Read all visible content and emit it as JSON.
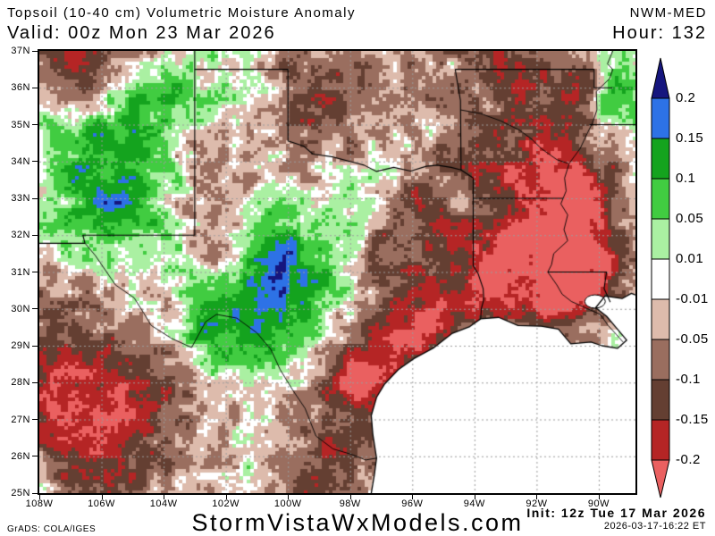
{
  "header": {
    "title": "Topsoil (10-40 cm) Volumetric Moisture Anomaly",
    "model": "NWM-MED",
    "valid": "Valid: 00z Mon 23 Mar 2026",
    "hour": "Hour: 132"
  },
  "footer": {
    "site": "StormVistaWxModels.com",
    "init": "Init: 12z Tue 17 Mar 2026",
    "generated": "2026-03-17-16:22 ET",
    "credit": "GrADS: COLA/IGES"
  },
  "axes": {
    "lat": [
      "37N",
      "36N",
      "35N",
      "34N",
      "33N",
      "32N",
      "31N",
      "30N",
      "29N",
      "28N",
      "27N",
      "26N",
      "25N"
    ],
    "lon": [
      "108W",
      "106W",
      "104W",
      "102W",
      "100W",
      "98W",
      "96W",
      "94W",
      "92W",
      "90W"
    ]
  },
  "colorbar": {
    "labels": [
      "0.2",
      "0.15",
      "0.1",
      "0.05",
      "0.01",
      "-0.01",
      "-0.05",
      "-0.1",
      "-0.15",
      "-0.2"
    ]
  },
  "map": {
    "bounds": {
      "lon_min": -108,
      "lon_max": -88.82,
      "lat_min": 25,
      "lat_max": 37
    },
    "grid": {
      "lat_step": 1,
      "lon_step": 2,
      "color": "#9c9c9c"
    },
    "levels": [
      0.2,
      0.15,
      0.1,
      0.05,
      0.01,
      -0.01,
      -0.05,
      -0.1,
      -0.15,
      -0.2
    ],
    "palette": [
      "#16167e",
      "#2d72e6",
      "#14a31e",
      "#41cc41",
      "#aaf0a2",
      "#ffffff",
      "#ddbbac",
      "#9a6e5f",
      "#643f32",
      "#b52525",
      "#ea6060"
    ],
    "base_bias": -0.012,
    "noise": {
      "scales": [
        [
          3.2,
          0.05
        ],
        [
          7.3,
          0.034
        ]
      ],
      "jitter": 0.018
    },
    "blobs": [
      [
        -105.7,
        34.6,
        1.5,
        0.1
      ],
      [
        -104.3,
        36.0,
        0.8,
        0.09
      ],
      [
        -106.7,
        33.0,
        1.1,
        0.07
      ],
      [
        -105.9,
        31.6,
        0.8,
        0.05
      ],
      [
        -103.6,
        30.6,
        1.2,
        0.04
      ],
      [
        -102.2,
        29.5,
        0.9,
        0.13
      ],
      [
        -100.4,
        31.35,
        0.9,
        0.14
      ],
      [
        -99.3,
        30.3,
        1.4,
        0.07
      ],
      [
        -100.8,
        29.6,
        0.7,
        0.07
      ],
      [
        -99.9,
        26.4,
        1.1,
        0.05
      ],
      [
        -97.9,
        33.7,
        1.0,
        0.05
      ],
      [
        -96.7,
        34.6,
        0.6,
        0.05
      ],
      [
        -96.6,
        36.6,
        0.7,
        0.05
      ],
      [
        -98.9,
        36.85,
        0.5,
        0.04
      ],
      [
        -89.6,
        35.5,
        0.7,
        0.1
      ],
      [
        -89.2,
        36.5,
        0.5,
        0.06
      ],
      [
        -94.4,
        30.7,
        0.4,
        0.05
      ],
      [
        -104.8,
        33.3,
        0.9,
        0.06
      ],
      [
        -101.0,
        36.0,
        0.7,
        0.05
      ],
      [
        -100.3,
        28.4,
        0.9,
        0.02
      ],
      [
        -106.85,
        36.7,
        1.1,
        -0.13
      ],
      [
        -106.9,
        36.9,
        0.4,
        -0.1
      ],
      [
        -104.9,
        37.0,
        0.9,
        -0.08
      ],
      [
        -102.6,
        33.6,
        0.9,
        -0.05
      ],
      [
        -102.1,
        31.5,
        0.8,
        -0.07
      ],
      [
        -99.9,
        36.4,
        0.9,
        -0.06
      ],
      [
        -98.4,
        35.2,
        1.3,
        -0.1
      ],
      [
        -96.1,
        36.1,
        0.9,
        -0.05
      ],
      [
        -93.4,
        36.9,
        0.7,
        -0.07
      ],
      [
        -92.2,
        34.6,
        1.6,
        -0.09
      ],
      [
        -90.6,
        35.8,
        0.5,
        -0.12
      ],
      [
        -90.9,
        33.2,
        1.0,
        -0.14
      ],
      [
        -91.3,
        31.0,
        1.1,
        -0.15
      ],
      [
        -89.9,
        31.0,
        0.8,
        -0.13
      ],
      [
        -90.4,
        32.7,
        0.6,
        -0.1
      ],
      [
        -94.7,
        30.7,
        1.4,
        -0.14
      ],
      [
        -96.4,
        29.1,
        1.0,
        -0.15
      ],
      [
        -97.7,
        28.1,
        0.5,
        -0.13
      ],
      [
        -98.2,
        27.2,
        1.3,
        -0.12
      ],
      [
        -99.3,
        25.5,
        1.0,
        -0.1
      ],
      [
        -105.7,
        26.6,
        1.8,
        -0.13
      ],
      [
        -104.6,
        28.4,
        1.1,
        -0.06
      ],
      [
        -107.3,
        29.6,
        1.3,
        -0.06
      ],
      [
        -107.8,
        27.3,
        1.0,
        -0.1
      ],
      [
        -95.9,
        32.9,
        0.9,
        -0.06
      ],
      [
        -93.3,
        33.9,
        0.7,
        -0.08
      ],
      [
        -92.5,
        31.9,
        0.8,
        -0.1
      ],
      [
        -93.0,
        30.3,
        0.8,
        -0.09
      ],
      [
        -91.8,
        36.3,
        0.8,
        -0.07
      ],
      [
        -97.3,
        31.4,
        0.5,
        -0.06
      ],
      [
        -91.0,
        30.3,
        0.5,
        -0.14
      ]
    ],
    "borders": [
      [
        [
          -103,
          37
        ],
        [
          -103,
          32
        ],
        [
          -106.6,
          32
        ],
        [
          -106.53,
          31.78
        ]
      ],
      [
        [
          -108,
          31.78
        ],
        [
          -106.53,
          31.78
        ]
      ],
      [
        [
          -103,
          36.5
        ],
        [
          -100,
          36.5
        ],
        [
          -100,
          34.56
        ]
      ],
      [
        [
          -100,
          34.56
        ],
        [
          -99.5,
          34.42
        ],
        [
          -99.2,
          34.2
        ],
        [
          -98.6,
          34.13
        ],
        [
          -98.0,
          34.0
        ],
        [
          -97.55,
          33.9
        ],
        [
          -97.15,
          33.73
        ],
        [
          -96.6,
          33.84
        ],
        [
          -96.05,
          33.74
        ],
        [
          -95.55,
          33.87
        ],
        [
          -95.2,
          33.9
        ],
        [
          -94.75,
          33.84
        ],
        [
          -94.43,
          33.77
        ],
        [
          -94.04,
          33.55
        ]
      ],
      [
        [
          -94.62,
          36.5
        ],
        [
          -94.45,
          35.65
        ],
        [
          -94.43,
          33.77
        ]
      ],
      [
        [
          -94.62,
          36.5
        ],
        [
          -90.15,
          36.5
        ],
        [
          -90.15,
          36.0
        ],
        [
          -89.57,
          36.0
        ]
      ],
      [
        [
          -94.04,
          33.55
        ],
        [
          -94.04,
          31.17
        ],
        [
          -93.88,
          30.95
        ],
        [
          -93.72,
          30.55
        ],
        [
          -93.7,
          30.25
        ],
        [
          -93.78,
          30.0
        ],
        [
          -93.8,
          29.73
        ]
      ],
      [
        [
          -94.04,
          33.0
        ],
        [
          -91.15,
          33.0
        ]
      ],
      [
        [
          -91.64,
          31.0
        ],
        [
          -89.75,
          31.0
        ],
        [
          -89.83,
          30.55
        ],
        [
          -89.63,
          30.18
        ]
      ],
      [
        [
          -90.3,
          35.0
        ],
        [
          -88.82,
          35.0
        ]
      ]
    ],
    "rivers": [
      [
        [
          -89.55,
          37
        ],
        [
          -89.72,
          36.65
        ],
        [
          -89.55,
          36.5
        ],
        [
          -89.65,
          36.25
        ],
        [
          -90.08,
          35.9
        ],
        [
          -90.06,
          35.4
        ],
        [
          -90.2,
          35.05
        ],
        [
          -90.35,
          34.8
        ],
        [
          -90.6,
          34.35
        ],
        [
          -90.95,
          33.95
        ],
        [
          -91.1,
          33.55
        ],
        [
          -91.05,
          33.2
        ],
        [
          -91.22,
          32.85
        ],
        [
          -91.0,
          32.55
        ],
        [
          -91.12,
          32.15
        ],
        [
          -91.0,
          31.85
        ],
        [
          -91.45,
          31.5
        ],
        [
          -91.52,
          31.2
        ],
        [
          -91.64,
          31.0
        ],
        [
          -91.35,
          30.65
        ],
        [
          -91.18,
          30.4
        ],
        [
          -90.88,
          30.2
        ],
        [
          -90.35,
          30.0
        ],
        [
          -89.95,
          29.85
        ],
        [
          -89.7,
          29.55
        ],
        [
          -89.43,
          29.3
        ],
        [
          -89.22,
          29.1
        ]
      ],
      [
        [
          -94.45,
          35.4
        ],
        [
          -93.8,
          35.3
        ],
        [
          -93.15,
          35.1
        ],
        [
          -92.55,
          34.85
        ],
        [
          -92.15,
          34.6
        ],
        [
          -91.85,
          34.35
        ],
        [
          -91.35,
          34.05
        ],
        [
          -91.0,
          33.95
        ]
      ],
      [
        [
          -106.53,
          31.78
        ],
        [
          -106.2,
          31.45
        ],
        [
          -105.55,
          30.65
        ],
        [
          -104.95,
          30.3
        ],
        [
          -104.65,
          29.9
        ],
        [
          -104.4,
          29.55
        ],
        [
          -103.75,
          29.2
        ],
        [
          -103.1,
          28.95
        ],
        [
          -102.65,
          29.65
        ],
        [
          -102.3,
          29.85
        ],
        [
          -101.65,
          29.75
        ],
        [
          -101.0,
          29.35
        ],
        [
          -100.55,
          28.9
        ],
        [
          -100.25,
          28.35
        ],
        [
          -99.85,
          27.8
        ],
        [
          -99.45,
          27.3
        ],
        [
          -99.1,
          26.55
        ],
        [
          -98.55,
          26.2
        ],
        [
          -97.95,
          26.05
        ],
        [
          -97.5,
          25.9
        ],
        [
          -97.15,
          25.95
        ]
      ]
    ],
    "coast": [
      [
        -97.32,
        25.0
      ],
      [
        -97.22,
        25.5
      ],
      [
        -97.15,
        25.95
      ],
      [
        -97.27,
        26.6
      ],
      [
        -97.32,
        27.1
      ],
      [
        -97.15,
        27.6
      ],
      [
        -96.9,
        27.95
      ],
      [
        -96.45,
        28.35
      ],
      [
        -95.95,
        28.65
      ],
      [
        -95.3,
        28.95
      ],
      [
        -94.73,
        29.33
      ],
      [
        -94.15,
        29.52
      ],
      [
        -93.8,
        29.73
      ],
      [
        -93.22,
        29.77
      ],
      [
        -92.6,
        29.55
      ],
      [
        -91.85,
        29.53
      ],
      [
        -91.3,
        29.45
      ],
      [
        -90.9,
        29.05
      ],
      [
        -90.25,
        29.1
      ],
      [
        -89.9,
        29.0
      ],
      [
        -89.4,
        28.93
      ],
      [
        -89.1,
        29.15
      ],
      [
        -89.45,
        29.5
      ],
      [
        -89.75,
        29.8
      ],
      [
        -90.1,
        30.03
      ],
      [
        -89.8,
        30.35
      ],
      [
        -89.25,
        30.28
      ],
      [
        -88.95,
        30.42
      ],
      [
        -88.82,
        30.38
      ]
    ],
    "water_close": [
      [
        -88.82,
        25.0
      ]
    ],
    "lake": {
      "lon": -90.12,
      "lat": 30.2,
      "rx": 0.33,
      "ry": 0.18
    }
  }
}
